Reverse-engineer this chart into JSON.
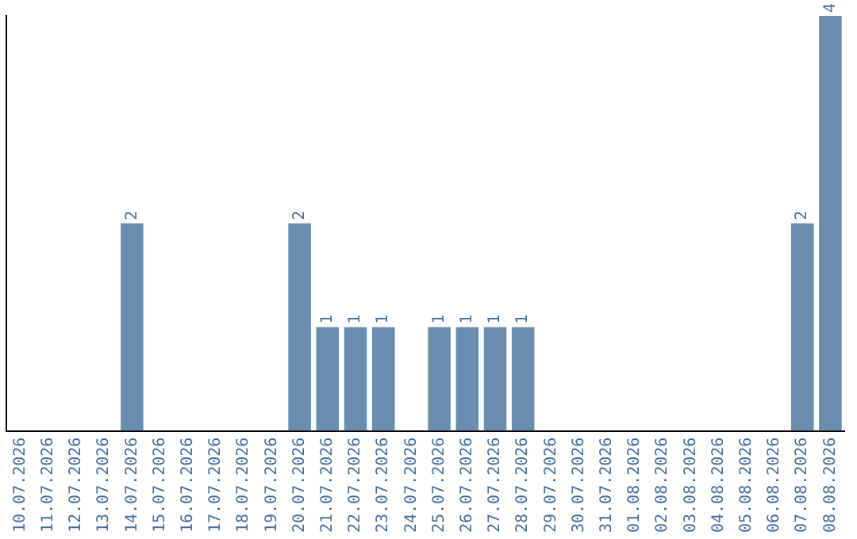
{
  "chart_data": {
    "type": "bar",
    "categories": [
      "10.07.2026",
      "11.07.2026",
      "12.07.2026",
      "13.07.2026",
      "14.07.2026",
      "15.07.2026",
      "16.07.2026",
      "17.07.2026",
      "18.07.2026",
      "19.07.2026",
      "20.07.2026",
      "21.07.2026",
      "22.07.2026",
      "23.07.2026",
      "24.07.2026",
      "25.07.2026",
      "26.07.2026",
      "27.07.2026",
      "28.07.2026",
      "29.07.2026",
      "30.07.2026",
      "31.07.2026",
      "01.08.2026",
      "02.08.2026",
      "03.08.2026",
      "04.08.2026",
      "05.08.2026",
      "06.08.2026",
      "07.08.2026",
      "08.08.2026"
    ],
    "values": [
      0,
      0,
      0,
      0,
      2,
      0,
      0,
      0,
      0,
      0,
      2,
      1,
      1,
      1,
      0,
      1,
      1,
      1,
      1,
      0,
      0,
      0,
      0,
      0,
      0,
      0,
      0,
      0,
      2,
      4
    ],
    "value_labels": [
      null,
      null,
      null,
      null,
      "2",
      null,
      null,
      null,
      null,
      null,
      "2",
      "1",
      "1",
      "1",
      null,
      "1",
      "1",
      "1",
      "1",
      null,
      null,
      null,
      null,
      null,
      null,
      null,
      null,
      null,
      "2",
      "4"
    ],
    "color": "#6a8caf",
    "grid": false,
    "legend": false,
    "tick_labels": "x"
  }
}
